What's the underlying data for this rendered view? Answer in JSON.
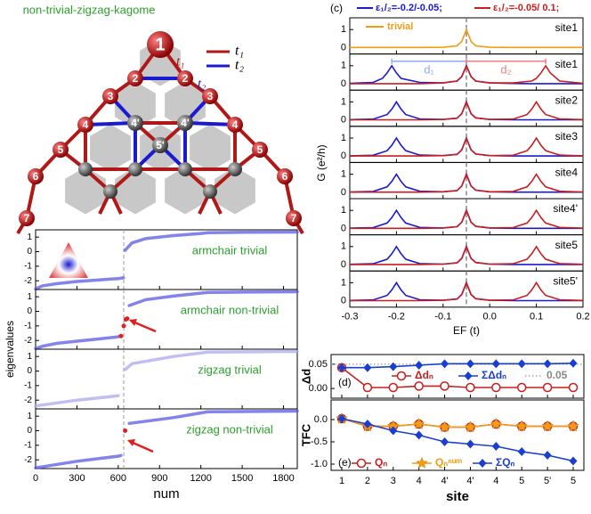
{
  "diagram": {
    "title": "non-trivial-zigzag-kagome",
    "legend": [
      "t₁",
      "t₂"
    ],
    "bond_labels": [
      "t₁",
      "t₂"
    ],
    "nodes": [
      "1",
      "2",
      "2",
      "3",
      "3",
      "4",
      "4",
      "4'",
      "4'",
      "5'",
      "5",
      "5",
      "6",
      "6",
      "7",
      "7"
    ]
  },
  "chart_data": [
    {
      "type": "scatter",
      "label": "armchair trivial",
      "ylabel": "eigenvalues",
      "xlim": [
        0,
        1900
      ],
      "ylim": [
        -2.6,
        1.5
      ],
      "yticks": [
        -2,
        -1,
        0,
        1
      ],
      "vline": 640,
      "color": "#5a5ae6",
      "x": [
        0,
        50,
        150,
        300,
        450,
        600,
        638,
        642,
        650,
        700,
        800,
        1000,
        1200,
        1250,
        1500,
        1900
      ],
      "values": [
        -2.55,
        -2.35,
        -2.2,
        -2.05,
        -1.95,
        -1.85,
        -1.8,
        null,
        0.1,
        0.6,
        0.9,
        1.1,
        1.25,
        1.3,
        1.33,
        1.35
      ]
    },
    {
      "type": "scatter",
      "label": "armchair non-trivial",
      "xlim": [
        0,
        1900
      ],
      "ylim": [
        -2.6,
        1.5
      ],
      "yticks": [
        -2,
        -1,
        0,
        1
      ],
      "vline": 640,
      "color": "#5a5ae6",
      "x": [
        0,
        50,
        150,
        300,
        450,
        600,
        610,
        640,
        680,
        800,
        1000,
        1250,
        1500,
        1900
      ],
      "values": [
        -2.55,
        -2.4,
        -2.2,
        -2.05,
        -1.9,
        -1.75,
        -1.7,
        null,
        0.4,
        0.8,
        1.05,
        1.3,
        1.32,
        1.35
      ],
      "highlight": {
        "color": "#e02020",
        "x": [
          620,
          640,
          655,
          665
        ],
        "values": [
          -1.7,
          -1.0,
          -0.55,
          -0.5
        ]
      }
    },
    {
      "type": "scatter",
      "label": "zigzag trivial",
      "xlim": [
        0,
        1900
      ],
      "ylim": [
        -2.6,
        1.5
      ],
      "yticks": [
        -2,
        -1,
        0,
        1
      ],
      "vline": 640,
      "color": "#a9a9f0",
      "x": [
        0,
        300,
        600,
        640,
        650,
        700,
        1000,
        1250,
        1900
      ],
      "values": [
        -2.4,
        -2.0,
        -1.7,
        null,
        0.1,
        0.5,
        1.0,
        1.3,
        1.35
      ]
    },
    {
      "type": "scatter",
      "label": "zigzag non-trivial",
      "xlabel": "num",
      "xlim": [
        0,
        1900
      ],
      "ylim": [
        -2.6,
        1.5
      ],
      "yticks": [
        -2,
        -1,
        0,
        1
      ],
      "xticks": [
        0,
        300,
        600,
        900,
        1200,
        1500,
        1800
      ],
      "vline": 640,
      "color": "#5a5ae6",
      "x": [
        0,
        300,
        600,
        620,
        640,
        680,
        1000,
        1250,
        1900
      ],
      "values": [
        -2.55,
        -2.1,
        -1.75,
        -1.7,
        null,
        0.5,
        0.9,
        1.3,
        1.35
      ],
      "highlight": {
        "color": "#e02020",
        "x": [
          650
        ],
        "values": [
          0.0
        ]
      }
    },
    {
      "type": "line",
      "label": "site1",
      "panel": "(c)",
      "ylabel": "G (e²/h)",
      "xlim": [
        -0.3,
        0.2
      ],
      "ylim": [
        -0.35,
        1.65
      ],
      "yticks": [
        0,
        1
      ],
      "vline": -0.05,
      "x": [
        -0.3,
        -0.25,
        -0.22,
        -0.21,
        -0.2,
        -0.19,
        -0.18,
        -0.15,
        -0.1,
        -0.07,
        -0.06,
        -0.05,
        -0.04,
        -0.03,
        0,
        0.05,
        0.08,
        0.09,
        0.1,
        0.11,
        0.12,
        0.15,
        0.2
      ],
      "series": [
        {
          "name": "trivial",
          "color": "#f39c12",
          "values": [
            0.01,
            0.01,
            0.01,
            0.01,
            0.01,
            0.01,
            0.01,
            0.01,
            0.02,
            0.1,
            0.35,
            1.0,
            0.35,
            0.1,
            0.02,
            0.01,
            0.01,
            0.01,
            0.01,
            0.01,
            0.01,
            0.01,
            0.01
          ]
        }
      ]
    },
    {
      "type": "line",
      "label": "site1",
      "xlim": [
        -0.3,
        0.2
      ],
      "ylim": [
        -0.35,
        1.65
      ],
      "yticks": [
        0,
        1
      ],
      "vline": -0.05,
      "x": [
        -0.3,
        -0.25,
        -0.23,
        -0.22,
        -0.21,
        -0.2,
        -0.19,
        -0.15,
        -0.1,
        -0.07,
        -0.06,
        -0.05,
        -0.04,
        -0.03,
        0,
        0.05,
        0.09,
        0.1,
        0.11,
        0.12,
        0.13,
        0.15,
        0.2
      ],
      "series": [
        {
          "name": "ε₁/₂=-0.2/-0.05;",
          "color": "#1a1ad0",
          "values": [
            0.03,
            0.08,
            0.3,
            0.6,
            1.0,
            0.6,
            0.3,
            0.08,
            0.05,
            0.15,
            0.4,
            1.0,
            0.4,
            0.15,
            0.05,
            0.02,
            0.01,
            0.01,
            0.01,
            0.01,
            0.01,
            0.01,
            0.01
          ]
        },
        {
          "name": "ε₁/₂=-0.05/ 0.1;",
          "color": "#c81e1e",
          "values": [
            0.01,
            0.01,
            0.01,
            0.01,
            0.01,
            0.01,
            0.01,
            0.01,
            0.05,
            0.15,
            0.4,
            1.0,
            0.4,
            0.15,
            0.05,
            0.05,
            0.15,
            0.3,
            0.6,
            1.0,
            0.6,
            0.15,
            0.03
          ]
        }
      ],
      "annotations": [
        {
          "text": "d₁",
          "from": -0.21,
          "to": -0.05,
          "color": "#8fa8ff"
        },
        {
          "text": "d₂",
          "from": -0.05,
          "to": 0.12,
          "color": "#f08080"
        }
      ]
    },
    {
      "type": "line",
      "label": "site2",
      "xlim": [
        -0.3,
        0.2
      ],
      "ylim": [
        -0.35,
        1.65
      ],
      "yticks": [
        0,
        1
      ],
      "vline": -0.05,
      "x": [
        -0.3,
        -0.25,
        -0.22,
        -0.21,
        -0.2,
        -0.19,
        -0.18,
        -0.15,
        -0.1,
        -0.07,
        -0.06,
        -0.05,
        -0.04,
        -0.03,
        0,
        0.05,
        0.08,
        0.09,
        0.1,
        0.11,
        0.12,
        0.15,
        0.2
      ],
      "series": [
        {
          "color": "#1a1ad0",
          "values": [
            0.02,
            0.05,
            0.3,
            0.6,
            1.0,
            0.6,
            0.3,
            0.06,
            0.03,
            0.1,
            0.35,
            1.0,
            0.35,
            0.12,
            0.03,
            0.01,
            0.01,
            0.01,
            0.01,
            0.01,
            0.01,
            0.01,
            0.01
          ]
        },
        {
          "color": "#c81e1e",
          "values": [
            0.01,
            0.01,
            0.01,
            0.01,
            0.01,
            0.01,
            0.01,
            0.01,
            0.03,
            0.1,
            0.35,
            1.0,
            0.35,
            0.12,
            0.03,
            0.05,
            0.3,
            0.6,
            1.0,
            0.6,
            0.3,
            0.06,
            0.02
          ]
        }
      ]
    },
    {
      "type": "line",
      "label": "site3",
      "xlim": [
        -0.3,
        0.2
      ],
      "ylim": [
        -0.35,
        1.65
      ],
      "yticks": [
        0,
        1
      ],
      "vline": -0.05,
      "x": [
        -0.3,
        -0.25,
        -0.22,
        -0.21,
        -0.2,
        -0.19,
        -0.18,
        -0.15,
        -0.1,
        -0.07,
        -0.06,
        -0.05,
        -0.04,
        -0.03,
        0,
        0.05,
        0.08,
        0.09,
        0.1,
        0.11,
        0.12,
        0.15,
        0.2
      ],
      "series": [
        {
          "color": "#1a1ad0",
          "values": [
            0.02,
            0.05,
            0.3,
            0.6,
            1.0,
            0.6,
            0.3,
            0.06,
            0.03,
            0.1,
            0.35,
            1.0,
            0.35,
            0.12,
            0.03,
            0.01,
            0.01,
            0.01,
            0.01,
            0.01,
            0.01,
            0.01,
            0.01
          ]
        },
        {
          "color": "#c81e1e",
          "values": [
            0.01,
            0.01,
            0.01,
            0.01,
            0.01,
            0.01,
            0.01,
            0.01,
            0.03,
            0.1,
            0.35,
            1.0,
            0.35,
            0.12,
            0.03,
            0.05,
            0.3,
            0.6,
            1.0,
            0.6,
            0.3,
            0.06,
            0.02
          ]
        }
      ]
    },
    {
      "type": "line",
      "label": "site4",
      "xlim": [
        -0.3,
        0.2
      ],
      "ylim": [
        -0.35,
        1.65
      ],
      "yticks": [
        0,
        1
      ],
      "vline": -0.05,
      "x": [
        -0.3,
        -0.25,
        -0.22,
        -0.21,
        -0.2,
        -0.19,
        -0.18,
        -0.15,
        -0.1,
        -0.07,
        -0.06,
        -0.05,
        -0.04,
        -0.03,
        0,
        0.05,
        0.08,
        0.09,
        0.1,
        0.11,
        0.12,
        0.15,
        0.2
      ],
      "series": [
        {
          "color": "#1a1ad0",
          "values": [
            0.02,
            0.05,
            0.3,
            0.6,
            1.0,
            0.6,
            0.3,
            0.06,
            0.03,
            0.1,
            0.35,
            1.0,
            0.35,
            0.12,
            0.03,
            0.01,
            0.01,
            0.01,
            0.01,
            0.01,
            0.01,
            0.01,
            0.01
          ]
        },
        {
          "color": "#c81e1e",
          "values": [
            0.01,
            0.01,
            0.01,
            0.01,
            0.01,
            0.01,
            0.01,
            0.01,
            0.03,
            0.1,
            0.35,
            1.0,
            0.35,
            0.12,
            0.03,
            0.05,
            0.3,
            0.6,
            1.0,
            0.6,
            0.3,
            0.06,
            0.02
          ]
        }
      ]
    },
    {
      "type": "line",
      "label": "site4'",
      "xlim": [
        -0.3,
        0.2
      ],
      "ylim": [
        -0.35,
        1.65
      ],
      "yticks": [
        0,
        1
      ],
      "vline": -0.05,
      "x": [
        -0.3,
        -0.25,
        -0.22,
        -0.21,
        -0.2,
        -0.19,
        -0.18,
        -0.15,
        -0.1,
        -0.07,
        -0.06,
        -0.05,
        -0.04,
        -0.03,
        0,
        0.05,
        0.08,
        0.09,
        0.1,
        0.11,
        0.12,
        0.15,
        0.2
      ],
      "series": [
        {
          "color": "#1a1ad0",
          "values": [
            0.02,
            0.05,
            0.3,
            0.6,
            1.0,
            0.6,
            0.3,
            0.06,
            0.03,
            0.1,
            0.35,
            1.0,
            0.35,
            0.12,
            0.03,
            0.01,
            0.01,
            0.01,
            0.01,
            0.01,
            0.01,
            0.01,
            0.01
          ]
        },
        {
          "color": "#c81e1e",
          "values": [
            0.01,
            0.01,
            0.01,
            0.01,
            0.01,
            0.01,
            0.01,
            0.01,
            0.03,
            0.1,
            0.35,
            1.0,
            0.35,
            0.12,
            0.03,
            0.05,
            0.3,
            0.6,
            1.0,
            0.6,
            0.3,
            0.06,
            0.02
          ]
        }
      ]
    },
    {
      "type": "line",
      "label": "site5",
      "xlim": [
        -0.3,
        0.2
      ],
      "ylim": [
        -0.35,
        1.65
      ],
      "yticks": [
        0,
        1
      ],
      "vline": -0.05,
      "x": [
        -0.3,
        -0.25,
        -0.22,
        -0.21,
        -0.2,
        -0.19,
        -0.18,
        -0.15,
        -0.1,
        -0.07,
        -0.06,
        -0.05,
        -0.04,
        -0.03,
        0,
        0.05,
        0.08,
        0.09,
        0.1,
        0.11,
        0.12,
        0.15,
        0.2
      ],
      "series": [
        {
          "color": "#1a1ad0",
          "values": [
            0.02,
            0.05,
            0.3,
            0.6,
            1.0,
            0.6,
            0.3,
            0.06,
            0.03,
            0.1,
            0.35,
            1.0,
            0.35,
            0.12,
            0.03,
            0.01,
            0.01,
            0.01,
            0.01,
            0.01,
            0.01,
            0.01,
            0.01
          ]
        },
        {
          "color": "#c81e1e",
          "values": [
            0.01,
            0.01,
            0.01,
            0.01,
            0.01,
            0.01,
            0.01,
            0.01,
            0.03,
            0.1,
            0.35,
            1.0,
            0.35,
            0.12,
            0.03,
            0.05,
            0.3,
            0.6,
            1.0,
            0.6,
            0.3,
            0.06,
            0.02
          ]
        }
      ]
    },
    {
      "type": "line",
      "label": "site5'",
      "xlabel": "EF (t)",
      "xlim": [
        -0.3,
        0.2
      ],
      "ylim": [
        -0.35,
        1.65
      ],
      "yticks": [
        0,
        1
      ],
      "vline": -0.05,
      "xticks": [
        -0.3,
        -0.2,
        -0.1,
        {
          "value": 0,
          "label": "0.0"
        },
        0.1,
        0.2
      ],
      "x": [
        -0.3,
        -0.25,
        -0.22,
        -0.21,
        -0.2,
        -0.19,
        -0.18,
        -0.15,
        -0.1,
        -0.07,
        -0.06,
        -0.05,
        -0.04,
        -0.03,
        0,
        0.05,
        0.08,
        0.09,
        0.1,
        0.11,
        0.12,
        0.15,
        0.2
      ],
      "series": [
        {
          "color": "#1a1ad0",
          "values": [
            0.02,
            0.05,
            0.3,
            0.6,
            1.0,
            0.6,
            0.3,
            0.06,
            0.03,
            0.1,
            0.35,
            1.0,
            0.35,
            0.12,
            0.03,
            0.01,
            0.01,
            0.01,
            0.01,
            0.01,
            0.01,
            0.01,
            0.01
          ]
        },
        {
          "color": "#c81e1e",
          "values": [
            0.01,
            0.01,
            0.01,
            0.01,
            0.01,
            0.01,
            0.01,
            0.01,
            0.03,
            0.1,
            0.35,
            1.0,
            0.35,
            0.12,
            0.03,
            0.05,
            0.3,
            0.6,
            1.0,
            0.6,
            0.3,
            0.06,
            0.02
          ]
        }
      ]
    },
    {
      "type": "line",
      "panel": "(d)",
      "ylabel": "Δd",
      "ylim": [
        -0.02,
        0.07
      ],
      "yticks": [
        {
          "value": 0,
          "label": "0.00"
        },
        {
          "value": 0.05,
          "label": "0.05"
        }
      ],
      "reference": {
        "value": 0.05,
        "label": "0.05"
      },
      "series": [
        {
          "name": "Δdₙ",
          "color": "#c81e1e",
          "marker": "circle",
          "values": [
            0.043,
            0.002,
            0.002,
            0.005,
            0.005,
            0.002,
            0.002,
            0.002,
            0.002,
            0.002
          ]
        },
        {
          "name": "ΣΔdₙ",
          "color": "#1a3fd0",
          "marker": "diamond",
          "values": [
            0.043,
            0.043,
            0.045,
            0.048,
            0.051,
            0.051,
            0.051,
            0.051,
            0.051,
            0.052
          ]
        }
      ]
    },
    {
      "type": "line",
      "panel": "(e)",
      "ylabel": "TFC",
      "xlabel": "site",
      "ylim": [
        -1.14,
        0.44
      ],
      "yticks": [
        {
          "value": 0,
          "label": "0.0"
        },
        -0.5,
        {
          "value": -1,
          "label": "-1.0"
        }
      ],
      "categories": [
        "1",
        "2",
        "3",
        "4",
        "4'",
        "4'",
        "4",
        "5",
        "5'",
        "5"
      ],
      "series": [
        {
          "name": "Qₙ",
          "color": "#c81e1e",
          "marker": "circle",
          "values": [
            0.02,
            -0.15,
            -0.15,
            -0.1,
            -0.17,
            -0.17,
            -0.1,
            -0.15,
            -0.15,
            -0.15
          ]
        },
        {
          "name": "Qₙⁿᵘᵐ",
          "color": "#f39c12",
          "marker": "star",
          "values": [
            0.02,
            -0.15,
            -0.15,
            -0.1,
            -0.17,
            -0.17,
            -0.1,
            -0.15,
            -0.15,
            -0.15
          ]
        },
        {
          "name": "ΣQₙ",
          "color": "#1a3fd0",
          "marker": "diamond",
          "values": [
            0.02,
            -0.1,
            -0.25,
            -0.35,
            -0.5,
            -0.55,
            -0.6,
            -0.72,
            -0.8,
            -0.93
          ]
        }
      ]
    }
  ]
}
